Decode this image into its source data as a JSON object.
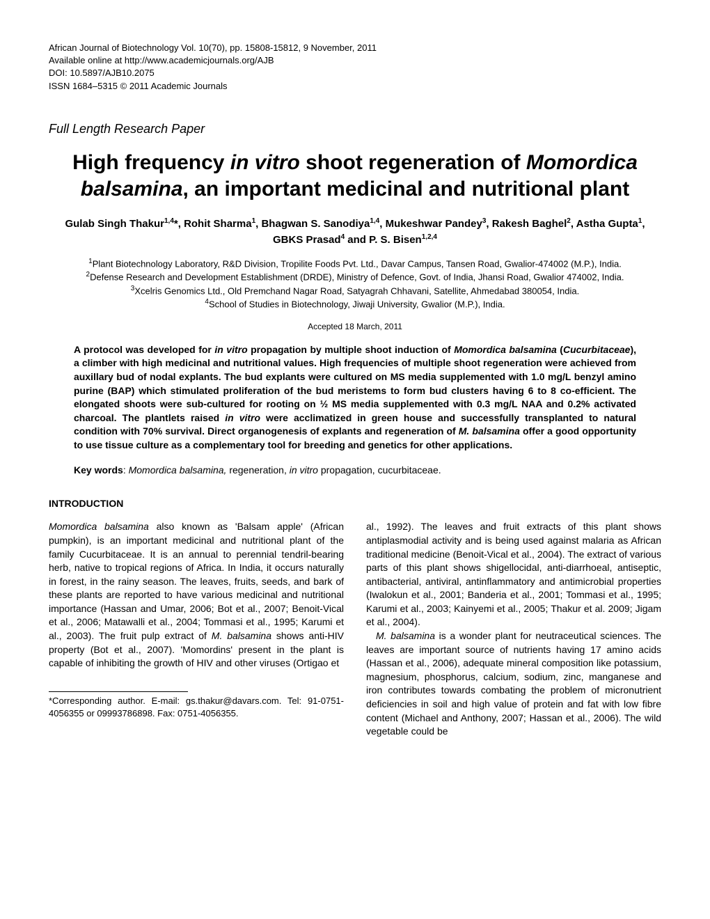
{
  "header": {
    "line1": "African Journal of Biotechnology Vol. 10(70), pp. 15808-15812, 9 November, 2011",
    "line2": "Available online at http://www.academicjournals.org/AJB",
    "line3": "DOI: 10.5897/AJB10.2075",
    "line4": "ISSN 1684–5315 © 2011 Academic Journals"
  },
  "paperType": "Full Length Research Paper",
  "title": {
    "prefix": "High frequency ",
    "italic1": "in vitro",
    "mid": " shoot regeneration of ",
    "italic2": "Momordica balsamina",
    "suffix": ", an important medicinal and nutritional plant"
  },
  "authors": "Gulab Singh Thakur<sup>1,4</sup>*, Rohit Sharma<sup>1</sup>, Bhagwan S. Sanodiya<sup>1,4</sup>, Mukeshwar Pandey<sup>3</sup>, Rakesh Baghel<sup>2</sup>, Astha Gupta<sup>1</sup>, GBKS Prasad<sup>4</sup> and P. S. Bisen<sup>1,2,4</sup>",
  "affiliations": {
    "a1": "<sup>1</sup>Plant Biotechnology Laboratory, R&D Division, Tropilite Foods Pvt. Ltd., Davar Campus, Tansen Road, Gwalior-474002 (M.P.), India.",
    "a2": "<sup>2</sup>Defense Research and Development Establishment (DRDE), Ministry of Defence, Govt. of India, Jhansi Road, Gwalior 474002, India.",
    "a3": "<sup>3</sup>Xcelris Genomics Ltd., Old Premchand Nagar Road, Satyagrah Chhavani, Satellite, Ahmedabad 380054, India.",
    "a4": "<sup>4</sup>School of Studies in Biotechnology, Jiwaji University, Gwalior (M.P.), India."
  },
  "accepted": "Accepted 18 March, 2011",
  "abstract": "A protocol was developed for <span class=\"italic\">in vitro</span> propagation by multiple shoot induction of <span class=\"italic\">Momordica balsamina</span> (<span class=\"italic\">Cucurbitaceae</span>), a climber with high medicinal and nutritional values. High frequencies of multiple shoot regeneration were achieved from auxillary bud of nodal explants. The bud explants were cultured on MS media supplemented with 1.0 mg/L benzyl amino purine (BAP) which stimulated proliferation of the bud meristems to form bud clusters having 6 to 8 co-efficient. The elongated shoots were sub-cultured for rooting on ½ MS media supplemented with 0.3 mg/L NAA and 0.2% activated charcoal. The plantlets raised <span class=\"italic\">in vitro</span> were acclimatized in green house and successfully transplanted to natural condition with 70% survival. Direct organogenesis of explants and regeneration of <span class=\"italic\">M. balsamina</span> offer a good opportunity to use tissue culture as a complementary tool for breeding and genetics for other applications.",
  "keywords": {
    "label": "Key words",
    "text": ": <span class=\"italic\">Momordica balsamina,</span> regeneration, <span class=\"italic\">in vitro</span> propagation, cucurbitaceae."
  },
  "introHeading": "INTRODUCTION",
  "col1": {
    "p1": "<span class=\"italic\">Momordica balsamina</span> also known as 'Balsam apple' (African pumpkin), is an important medicinal and nutritional plant of the family Cucurbitaceae. It is an annual to perennial tendril-bearing herb, native to tropical regions of Africa. In India, it occurs naturally in forest, in the rainy season. The leaves, fruits, seeds, and bark of these plants are reported to have various medicinal and nutritional importance (Hassan and Umar, 2006; Bot et al., 2007; Benoit-Vical et al., 2006; Matawalli et al., 2004; Tommasi et al., 1995; Karumi et al., 2003). The fruit pulp extract of <span class=\"italic\">M. balsamina</span> shows anti-HIV property (Bot et al., 2007). 'Momordins' present in the plant is capable of inhibiting the growth of HIV and other viruses  (Ortigao  et"
  },
  "col2": {
    "p1": "al., 1992). The leaves and fruit extracts of this plant shows antiplasmodial activity and is being used against malaria as African traditional medicine (Benoit-Vical et al., 2004). The extract of various parts of this plant shows shigellocidal, anti-diarrhoeal, antiseptic, antibacterial, antiviral, antinflammatory and antimicrobial properties (Iwalokun et al., 2001; Banderia et al., 2001; Tommasi et al., 1995; Karumi et al., 2003; Kainyemi et al., 2005; Thakur et al. 2009; Jigam et al., 2004).",
    "p2": "<span class=\"italic\">M. balsamina</span> is a wonder plant for neutraceutical sciences. The leaves are important source of nutrients having 17 amino acids (Hassan et al., 2006), adequate mineral composition like potassium, magnesium, phosphorus, calcium, sodium, zinc, manganese and iron contributes towards combating the problem of micronutrient deficiencies in soil and high value of protein and fat with low fibre content (Michael and Anthony, 2007; Hassan et al., 2006). The wild  vegetable  could  be"
  },
  "footnote": "*Corresponding author. E-mail: gs.thakur@davars.com. Tel: 91-0751-4056355 or 09993786898. Fax: 0751-4056355."
}
